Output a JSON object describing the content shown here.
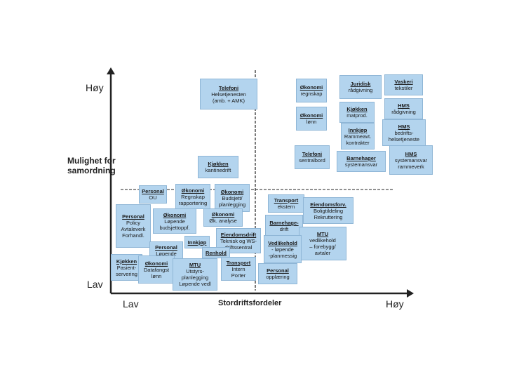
{
  "axis": {
    "y_high": "Høy",
    "y_title": "Mulighet for\nsamordning",
    "y_low": "Lav",
    "x_low": "Lav",
    "x_title": "Stordriftsfordeler",
    "x_high": "Høy"
  },
  "boxes": [
    {
      "title": "Telefoni",
      "body": "Helsetjenesten\n(amb. + AMK)"
    },
    {
      "title": "Økonomi",
      "body": "regnskap"
    },
    {
      "title": "Juridisk",
      "body": "rådgivning"
    },
    {
      "title": "Vaskeri",
      "body": "tekstiler"
    },
    {
      "title": "Kjøkken",
      "body": "matprod."
    },
    {
      "title": "HMS",
      "body": "rådgivning"
    },
    {
      "title": "Økonomi",
      "body": "lønn"
    },
    {
      "title": "Innkjøp",
      "body": "Rammeavt.\nkontrakter"
    },
    {
      "title": "HMS",
      "body": "bedrifts-\nhelsetjeneste"
    },
    {
      "title": "Telefoni",
      "body": "sentralbord"
    },
    {
      "title": "Barnehager",
      "body": "systemansvar"
    },
    {
      "title": "HMS",
      "body": "systemansvar\nrammeverk"
    },
    {
      "title": "Kjøkken",
      "body": "kantinedrift"
    },
    {
      "title": "Personal",
      "body": "OU"
    },
    {
      "title": "Økonomi",
      "body": "Regnskap\nrapportering"
    },
    {
      "title": "Økonomi",
      "body": "Budsjett/\nplanlegging"
    },
    {
      "title": "Transport",
      "body": "ekstern"
    },
    {
      "title": "Eiendomsforv.",
      "body": "Boligtildeling\nRekruttering"
    },
    {
      "title": "Personal",
      "body": "Policy\nAvtaleverk\nForhandl."
    },
    {
      "title": "Økonomi",
      "body": "Løpende\nbudsjettoppf."
    },
    {
      "title": "Økonomi",
      "body": "Øk. analyse"
    },
    {
      "title": "Barnehage-",
      "body": "drift"
    },
    {
      "title": "Eiendomsdrift",
      "body": "Teknisk og WS-\ndriftssentral"
    },
    {
      "title": "MTU",
      "body": "vedlikehold\n– forebygg/\navtaler"
    },
    {
      "title": "Personal",
      "body": "Løpende"
    },
    {
      "title": "Innkjøp",
      "body": ""
    },
    {
      "title": "Renhold",
      "body": ""
    },
    {
      "title": "Vedlikehold",
      "body": "- løpende\n-planmessig"
    },
    {
      "title": "Kjøkken",
      "body": "Pasient-\nservering"
    },
    {
      "title": "Økonomi",
      "body": "Datafangst\nlønn"
    },
    {
      "title": "MTU",
      "body": "Utstyrs-\nplanlegging\nLøpende vedl"
    },
    {
      "title": "Transport",
      "body": "Intern\nPorter"
    },
    {
      "title": "Personal",
      "body": "opplæring"
    }
  ]
}
